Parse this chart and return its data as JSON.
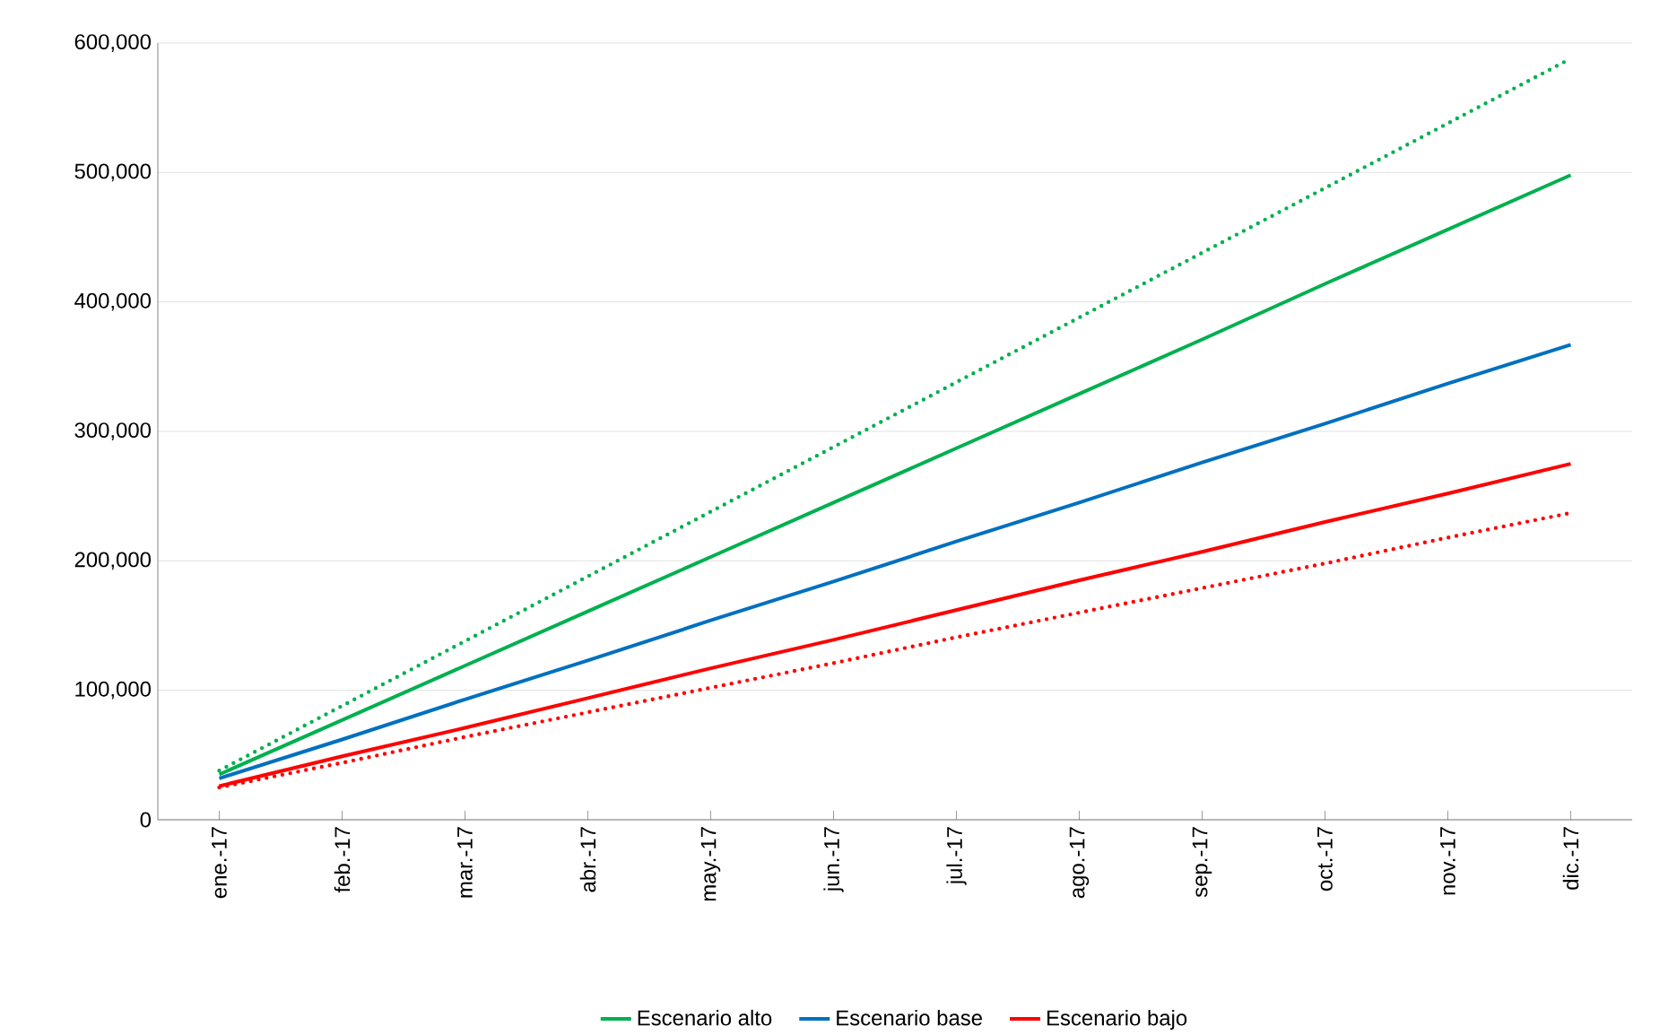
{
  "chart_data": {
    "type": "line",
    "categories": [
      "ene.-17",
      "feb.-17",
      "mar.-17",
      "abr.-17",
      "may.-17",
      "jun.-17",
      "jul.-17",
      "ago.-17",
      "sep.-17",
      "oct.-17",
      "nov.-17",
      "dic.-17"
    ],
    "series": [
      {
        "name": "Escenario alto",
        "color": "#00b050",
        "values": [
          35000,
          77000,
          119000,
          161000,
          203000,
          245000,
          287000,
          329000,
          371000,
          414000,
          456000,
          498000
        ]
      },
      {
        "name": "Escenario base",
        "color": "#0070c0",
        "values": [
          32000,
          62000,
          93000,
          123000,
          154000,
          184000,
          215000,
          245000,
          276000,
          306000,
          337000,
          367000
        ]
      },
      {
        "name": "Escenario bajo",
        "color": "#ff0000",
        "values": [
          26000,
          49000,
          71000,
          94000,
          117000,
          139000,
          162000,
          185000,
          207000,
          230000,
          252000,
          275000
        ]
      },
      {
        "color": "#00b050",
        "line_style": "dotted",
        "values": [
          38000,
          88000,
          138000,
          188000,
          238000,
          288000,
          338000,
          388000,
          438000,
          488000,
          538000,
          588000
        ]
      },
      {
        "color": "#ff0000",
        "line_style": "dotted",
        "values": [
          25000,
          44000,
          64000,
          83000,
          102000,
          121000,
          141000,
          160000,
          179000,
          198000,
          218000,
          237000
        ]
      }
    ],
    "ylim": [
      0,
      600000
    ],
    "yticks": [
      0,
      {
        "value": 100000,
        "label": "100,000"
      },
      {
        "value": 200000,
        "label": "200,000"
      },
      {
        "value": 300000,
        "label": "300,000"
      },
      {
        "value": 400000,
        "label": "400,000"
      },
      {
        "value": 500000,
        "label": "500,000"
      },
      {
        "value": 600000,
        "label": "600,000"
      }
    ],
    "grid": "y",
    "legend": "bottom",
    "marker": "none",
    "line_style": "solid"
  }
}
